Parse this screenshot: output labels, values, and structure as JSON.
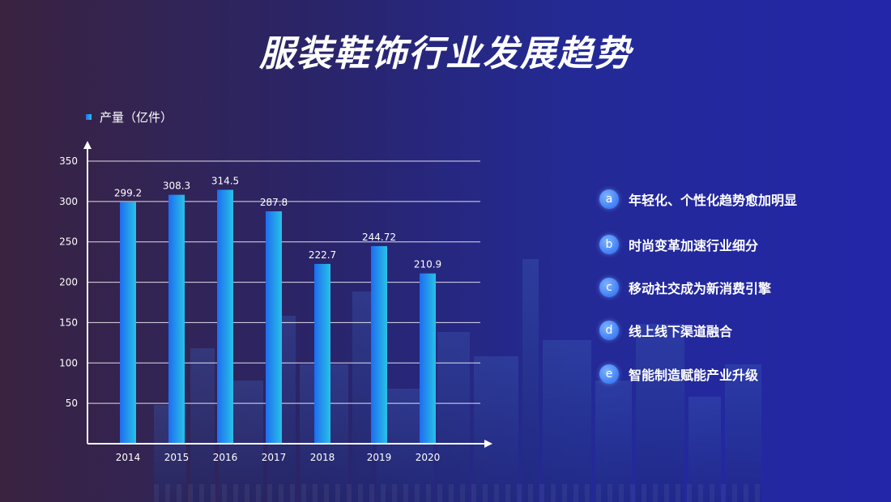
{
  "title": "服装鞋饰行业发展趋势",
  "legend_label": "产量（亿件）",
  "colors": {
    "bar_start": "#1f6cf0",
    "bar_end": "#27c2e8",
    "badge": "#4a86f5",
    "axis": "#ffffff"
  },
  "chart_data": {
    "type": "bar",
    "categories": [
      "2014",
      "2015",
      "2016",
      "2017",
      "2018",
      "2019",
      "2020"
    ],
    "series": [
      {
        "name": "产量（亿件）",
        "values": [
          299.2,
          308.3,
          314.5,
          287.8,
          222.7,
          244.72,
          210.9
        ]
      }
    ],
    "data_labels": [
      "299.2",
      "308.3",
      "314.5",
      "287.8",
      "222.7",
      "244.72",
      "210.9"
    ],
    "yticks": [
      "50",
      "100",
      "150",
      "200",
      "250",
      "300",
      "350"
    ],
    "ylim": [
      0,
      350
    ],
    "grid": true,
    "legend": "top-left"
  },
  "trends": [
    {
      "badge": "a",
      "text": "年轻化、个性化趋势愈加明显"
    },
    {
      "badge": "b",
      "text": "时尚变革加速行业细分"
    },
    {
      "badge": "c",
      "text": "移动社交成为新消费引擎"
    },
    {
      "badge": "d",
      "text": "线上线下渠道融合"
    },
    {
      "badge": "e",
      "text": "智能制造赋能产业升级"
    }
  ]
}
